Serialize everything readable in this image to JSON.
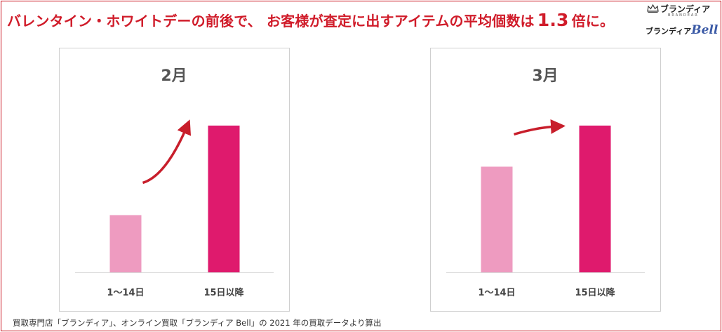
{
  "header": {
    "text_before": "バレンタイン・ホワイトデーの前後で、 お客様が査定に出すアイテムの平均個数は",
    "ratio": "1.3",
    "text_after": "倍に。"
  },
  "logos": {
    "brand_name": "ブランディア",
    "brand_sub": "BRANDEAR",
    "bell_prefix": "ブランディア",
    "bell_suffix": "Bell"
  },
  "colors": {
    "accent_red": "#d01c2a",
    "bar_light": "#ee9bc0",
    "bar_dark": "#df1a6d",
    "arrow": "#c81e2b"
  },
  "chart_data": [
    {
      "type": "bar",
      "title": "2月",
      "categories": [
        "1〜14日",
        "15日以降"
      ],
      "values": [
        0.39,
        1.0
      ],
      "ylim": [
        0,
        1.1
      ],
      "grid": false,
      "legend": "none",
      "annotation": "arrow-up-right"
    },
    {
      "type": "bar",
      "title": "3月",
      "categories": [
        "1〜14日",
        "15日以降"
      ],
      "values": [
        0.72,
        1.0
      ],
      "ylim": [
        0,
        1.1
      ],
      "grid": false,
      "legend": "none",
      "annotation": "arrow-up-right"
    }
  ],
  "footnote": "買取専門店「ブランディア」、オンライン買取「ブランディア Bell」の 2021 年の買取データより算出"
}
